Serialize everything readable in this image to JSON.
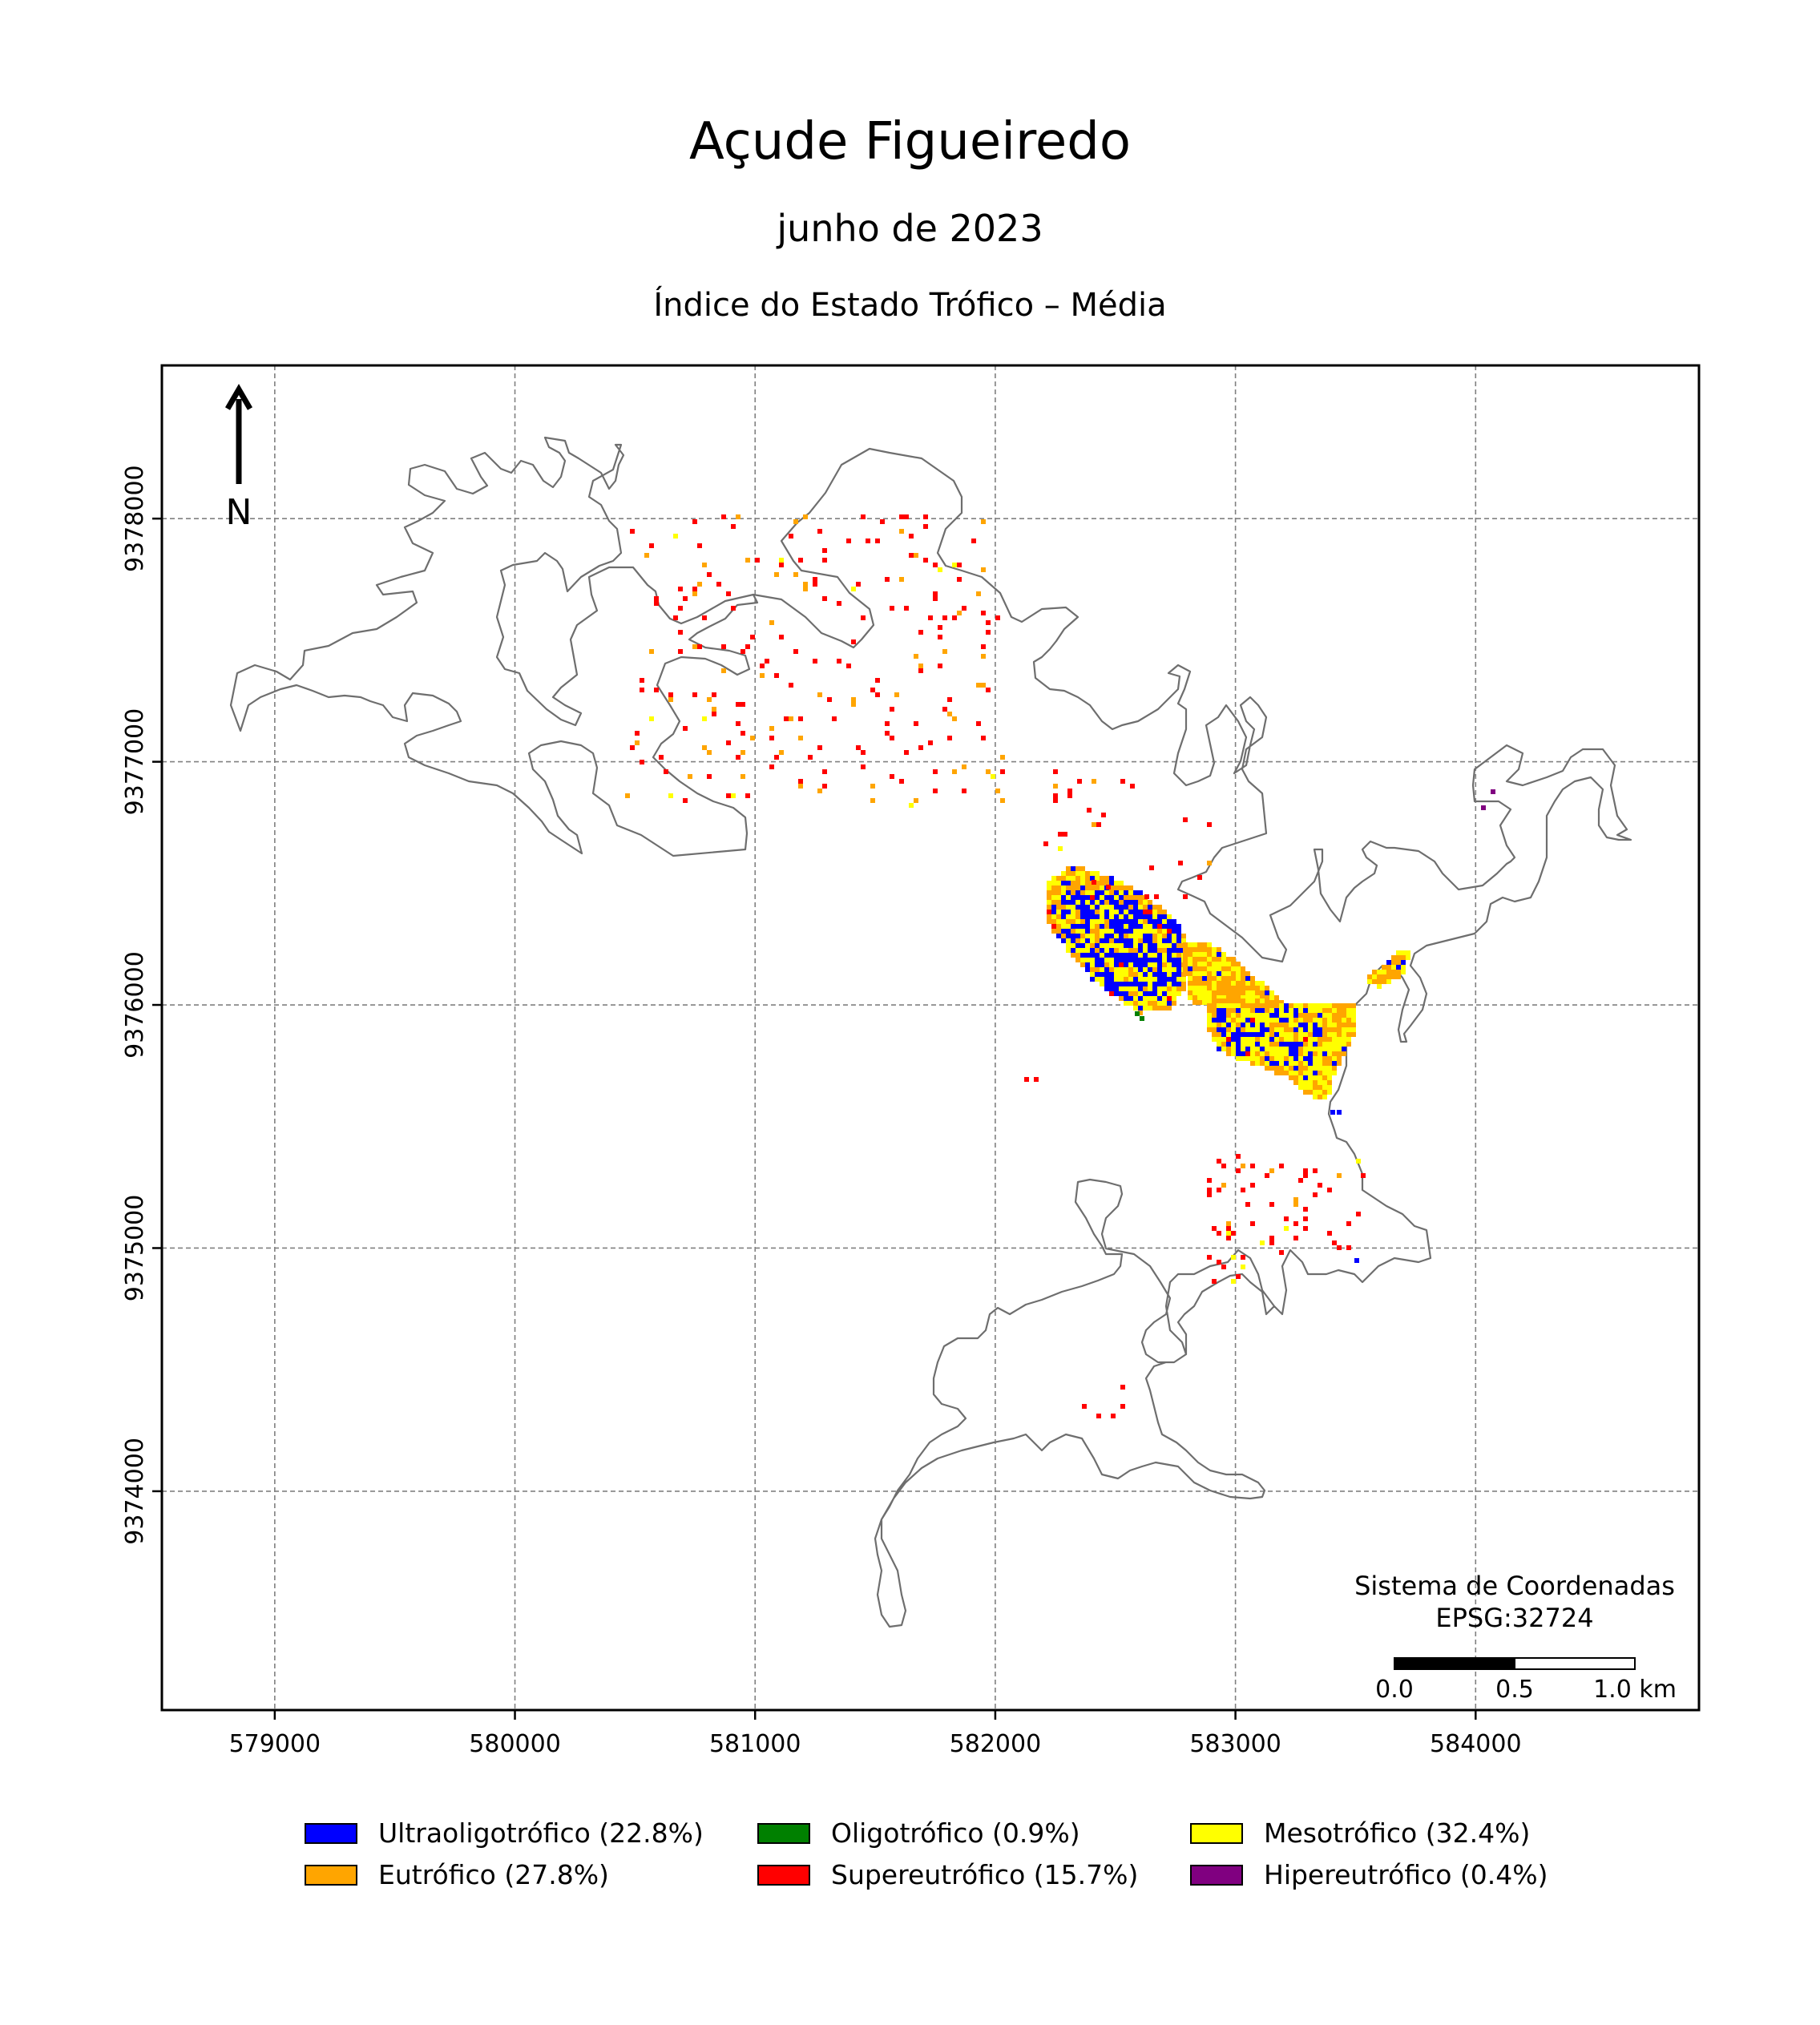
{
  "title": "Açude Figueiredo",
  "subtitle": "junho de 2023",
  "subtitle2": "Índice do Estado Trófico – Média",
  "north_label": "N",
  "crs": {
    "line1": "Sistema de Coordenadas",
    "line2": "EPSG:32724"
  },
  "scalebar": {
    "labels": [
      "0.0",
      "0.5",
      "1.0 km"
    ]
  },
  "axes": {
    "x_ticks": [
      "579000",
      "580000",
      "581000",
      "582000",
      "583000",
      "584000"
    ],
    "y_ticks": [
      "9378000",
      "9377000",
      "9376000",
      "9375000",
      "9374000"
    ],
    "x_range": [
      578530,
      584930
    ],
    "y_range": [
      9373100,
      9378630
    ],
    "grid": true
  },
  "legend": [
    {
      "label": "Ultraoligotrófico (22.8%)",
      "color": "#0000ff",
      "name": "Ultraoligotrófico",
      "percent": 22.8
    },
    {
      "label": "Oligotrófico (0.9%)",
      "color": "#008000",
      "name": "Oligotrófico",
      "percent": 0.9
    },
    {
      "label": "Mesotrófico (32.4%)",
      "color": "#ffff00",
      "name": "Mesotrófico",
      "percent": 32.4
    },
    {
      "label": "Eutrófico (27.8%)",
      "color": "#ffa500",
      "name": "Eutrófico",
      "percent": 27.8
    },
    {
      "label": "Supereutrófico (15.7%)",
      "color": "#ff0000",
      "name": "Supereutrófico",
      "percent": 15.7
    },
    {
      "label": "Hipereutrófico (0.4%)",
      "color": "#800080",
      "name": "Hipereutrófico",
      "percent": 0.4
    }
  ]
}
